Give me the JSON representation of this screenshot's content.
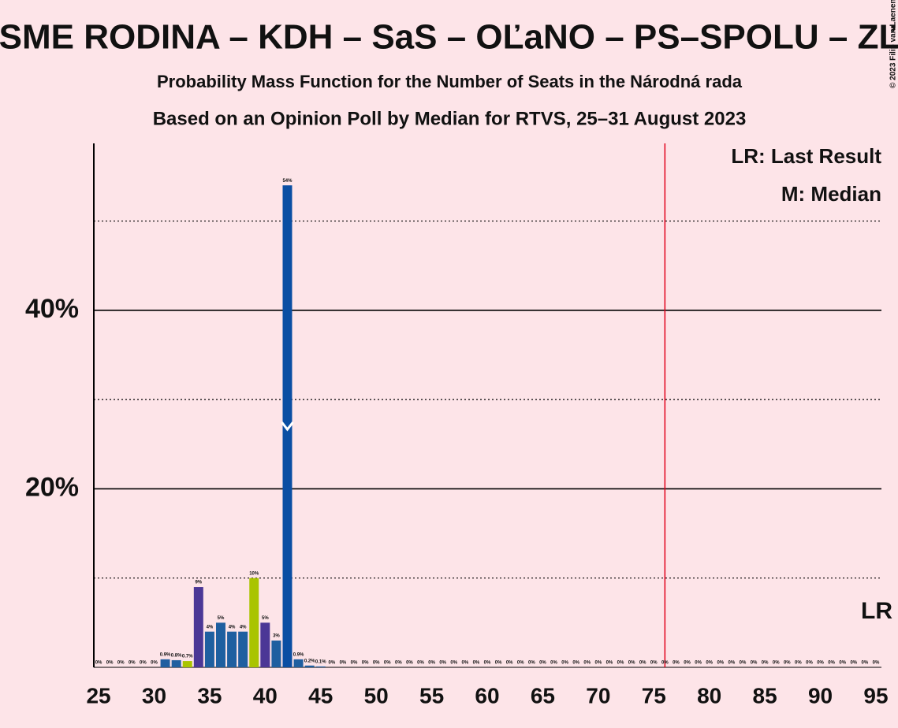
{
  "chart_data": {
    "type": "bar",
    "title": "SME RODINA – KDH – SaS – OĽaNO – PS–SPOLU – ZĽ",
    "subtitle": "Probability Mass Function for the Number of Seats in the Národná rada",
    "subtitle2": "Based on an Opinion Poll by Median for RTVS, 25–31 August 2023",
    "legend": [
      "LR: Last Result",
      "M: Median"
    ],
    "last_result_label": "LR",
    "copyright": "© 2023 Filip van Laenen",
    "x": [
      25,
      26,
      27,
      28,
      29,
      30,
      31,
      32,
      33,
      34,
      35,
      36,
      37,
      38,
      39,
      40,
      41,
      42,
      43,
      44,
      45,
      46,
      47,
      48,
      49,
      50,
      51,
      52,
      53,
      54,
      55,
      56,
      57,
      58,
      59,
      60,
      61,
      62,
      63,
      64,
      65,
      66,
      67,
      68,
      69,
      70,
      71,
      72,
      73,
      74,
      75,
      76,
      77,
      78,
      79,
      80,
      81,
      82,
      83,
      84,
      85,
      86,
      87,
      88,
      89,
      90,
      91,
      92,
      93,
      94,
      95
    ],
    "values": [
      0,
      0,
      0,
      0,
      0,
      0,
      0.9,
      0.8,
      0.7,
      9,
      4,
      5,
      4,
      4,
      10,
      5,
      3,
      54,
      0.9,
      0.2,
      0.1,
      0,
      0,
      0,
      0,
      0,
      0,
      0,
      0,
      0,
      0,
      0,
      0,
      0,
      0,
      0,
      0,
      0,
      0,
      0,
      0,
      0,
      0,
      0,
      0,
      0,
      0,
      0,
      0,
      0,
      0,
      0,
      0,
      0,
      0,
      0,
      0,
      0,
      0,
      0,
      0,
      0,
      0,
      0,
      0,
      0,
      0,
      0,
      0,
      0,
      0
    ],
    "value_labels": [
      "0%",
      "0%",
      "0%",
      "0%",
      "0%",
      "0%",
      "0.9%",
      "0.8%",
      "0.7%",
      "9%",
      "4%",
      "5%",
      "4%",
      "4%",
      "10%",
      "5%",
      "3%",
      "54%",
      "0.9%",
      "0.2%",
      "0.1%",
      "0%",
      "0%",
      "0%",
      "0%",
      "0%",
      "0%",
      "0%",
      "0%",
      "0%",
      "0%",
      "0%",
      "0%",
      "0%",
      "0%",
      "0%",
      "0%",
      "0%",
      "0%",
      "0%",
      "0%",
      "0%",
      "0%",
      "0%",
      "0%",
      "0%",
      "0%",
      "0%",
      "0%",
      "0%",
      "0%",
      "0%",
      "0%",
      "0%",
      "0%",
      "0%",
      "0%",
      "0%",
      "0%",
      "0%",
      "0%",
      "0%",
      "0%",
      "0%",
      "0%",
      "0%",
      "0%",
      "0%",
      "0%",
      "0%",
      "0%"
    ],
    "colors": [
      "#1f5fa0",
      "#1f5fa0",
      "#1f5fa0",
      "#1f5fa0",
      "#1f5fa0",
      "#1f5fa0",
      "#1f5fa0",
      "#1f5fa0",
      "#a9c400",
      "#4b3796",
      "#1f5fa0",
      "#1f5fa0",
      "#1f5fa0",
      "#1f5fa0",
      "#a9c400",
      "#4b3796",
      "#1f5fa0",
      "#0a4ea3",
      "#1f5fa0",
      "#1f5fa0",
      "#1f5fa0",
      "#1f5fa0",
      "#1f5fa0",
      "#1f5fa0",
      "#1f5fa0",
      "#1f5fa0",
      "#1f5fa0",
      "#1f5fa0",
      "#1f5fa0",
      "#1f5fa0",
      "#1f5fa0",
      "#1f5fa0",
      "#1f5fa0",
      "#1f5fa0",
      "#1f5fa0",
      "#1f5fa0",
      "#1f5fa0",
      "#1f5fa0",
      "#1f5fa0",
      "#1f5fa0",
      "#1f5fa0",
      "#1f5fa0",
      "#1f5fa0",
      "#1f5fa0",
      "#1f5fa0",
      "#1f5fa0",
      "#1f5fa0",
      "#1f5fa0",
      "#1f5fa0",
      "#1f5fa0",
      "#1f5fa0",
      "#1f5fa0",
      "#1f5fa0",
      "#1f5fa0",
      "#1f5fa0",
      "#1f5fa0",
      "#1f5fa0",
      "#1f5fa0",
      "#1f5fa0",
      "#1f5fa0",
      "#1f5fa0",
      "#1f5fa0",
      "#1f5fa0",
      "#1f5fa0",
      "#1f5fa0",
      "#1f5fa0",
      "#1f5fa0",
      "#1f5fa0",
      "#1f5fa0",
      "#1f5fa0",
      "#1f5fa0"
    ],
    "xlim": [
      24.57,
      95.5
    ],
    "xticks": [
      25,
      30,
      35,
      40,
      45,
      50,
      55,
      60,
      65,
      70,
      75,
      80,
      85,
      90,
      95
    ],
    "ylim": [
      0,
      58.7
    ],
    "yticks": [
      {
        "value": 20,
        "label": "20%"
      },
      {
        "value": 40,
        "label": "40%"
      }
    ],
    "minor_yticks": [
      10,
      30,
      50
    ],
    "majority": 76,
    "median": 42,
    "majority_color": "#e0001a"
  }
}
